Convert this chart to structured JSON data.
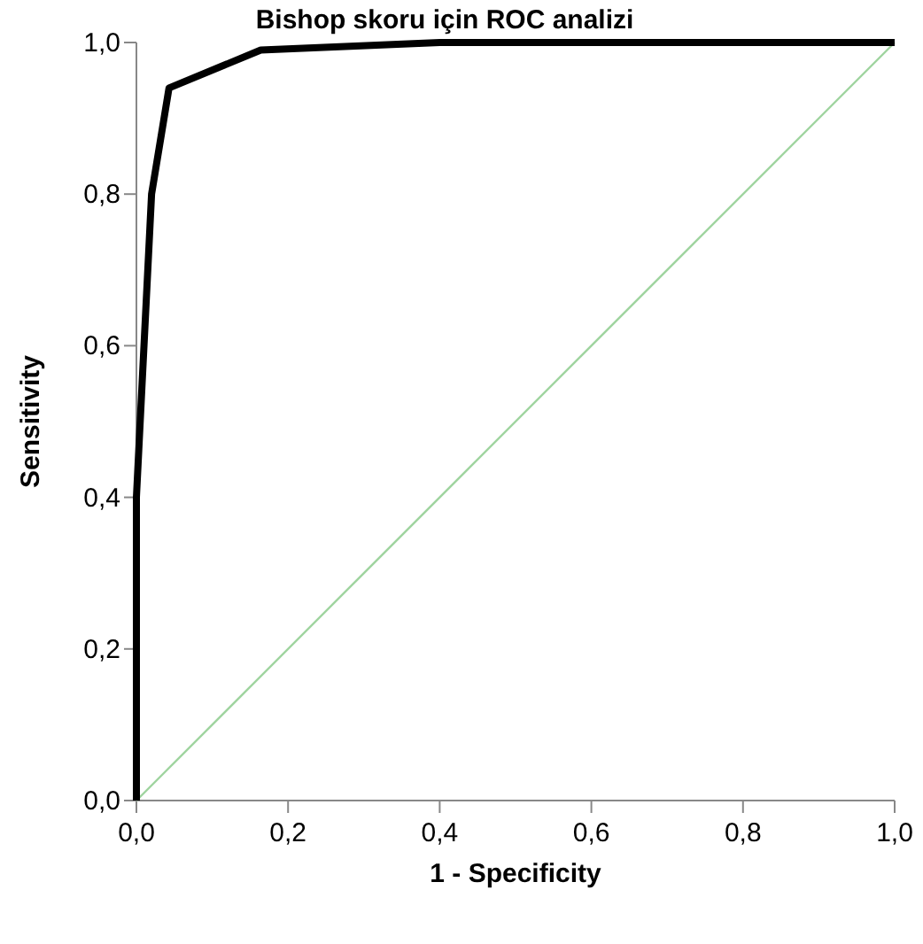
{
  "chart_data": {
    "type": "line",
    "title": "Bishop skoru için ROC analizi",
    "xlabel": "1 - Specificity",
    "ylabel": "Sensitivity",
    "xlim": [
      0,
      1
    ],
    "ylim": [
      0,
      1
    ],
    "xticks": [
      {
        "value": 0,
        "label": "0,0"
      },
      {
        "value": 0.2,
        "label": "0,2"
      },
      {
        "value": 0.4,
        "label": "0,4"
      },
      {
        "value": 0.6,
        "label": "0,6"
      },
      {
        "value": 0.8,
        "label": "0,8"
      },
      {
        "value": 1,
        "label": "1,0"
      }
    ],
    "yticks": [
      {
        "value": 0,
        "label": "0,0"
      },
      {
        "value": 0.2,
        "label": "0,2"
      },
      {
        "value": 0.4,
        "label": "0,4"
      },
      {
        "value": 0.6,
        "label": "0,6"
      },
      {
        "value": 0.8,
        "label": "0,8"
      },
      {
        "value": 1,
        "label": "1,0"
      }
    ],
    "grid": false,
    "series": [
      {
        "color": "#000000",
        "x": [
          0,
          0,
          0.02,
          0.043,
          0.164,
          0.4,
          1
        ],
        "values": [
          0,
          0.4,
          0.8,
          0.94,
          0.99,
          1,
          1
        ]
      },
      {
        "color": "#9fd49f",
        "x": [
          0,
          1
        ],
        "values": [
          0,
          1
        ]
      }
    ]
  }
}
